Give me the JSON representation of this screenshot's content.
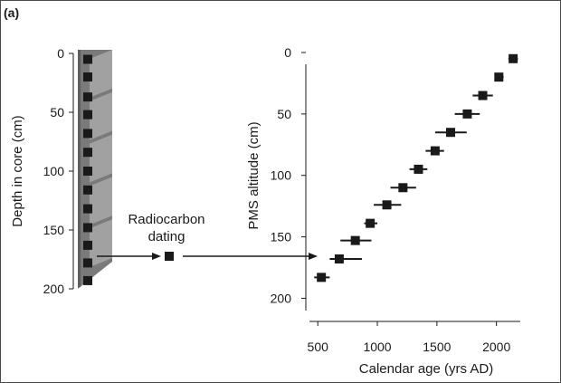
{
  "panel_label": "(a)",
  "annotation": {
    "line1": "Radiocarbon",
    "line2": "dating"
  },
  "colors": {
    "marker": "#1a1a1a",
    "axis": "#1a1a1a",
    "core_dark": "#7a7a7a",
    "core_light": "#a8a8a8",
    "core_shadow": "#5e5e5e"
  },
  "chart_data": [
    {
      "type": "core-diagram",
      "ylabel": "Depth in core (cm)",
      "ylim": [
        0,
        200
      ],
      "yticks": [
        0,
        50,
        100,
        150,
        200
      ],
      "sample_depths": [
        5,
        20,
        37,
        52,
        68,
        84,
        100,
        116,
        132,
        148,
        163,
        178,
        193
      ]
    },
    {
      "type": "scatter",
      "xlabel": "Calendar age (yrs AD)",
      "ylabel": "PMS altitude (cm)",
      "xlim": [
        430,
        2200
      ],
      "ylim": [
        0,
        210
      ],
      "xticks": [
        500,
        1000,
        1500,
        2000
      ],
      "yticks": [
        0,
        50,
        100,
        150,
        200
      ],
      "points": [
        {
          "x": 2140,
          "y": 5,
          "xerr": [
            2100,
            2180
          ]
        },
        {
          "x": 2020,
          "y": 20,
          "xerr": [
            1985,
            2060
          ]
        },
        {
          "x": 1885,
          "y": 35,
          "xerr": [
            1800,
            1970
          ]
        },
        {
          "x": 1755,
          "y": 50,
          "xerr": [
            1650,
            1860
          ]
        },
        {
          "x": 1615,
          "y": 65,
          "xerr": [
            1485,
            1750
          ]
        },
        {
          "x": 1485,
          "y": 80,
          "xerr": [
            1405,
            1560
          ]
        },
        {
          "x": 1345,
          "y": 95,
          "xerr": [
            1270,
            1420
          ]
        },
        {
          "x": 1215,
          "y": 110,
          "xerr": [
            1110,
            1325
          ]
        },
        {
          "x": 1080,
          "y": 124,
          "xerr": [
            970,
            1200
          ]
        },
        {
          "x": 940,
          "y": 139,
          "xerr": [
            890,
            1000
          ]
        },
        {
          "x": 815,
          "y": 153,
          "xerr": [
            690,
            950
          ]
        },
        {
          "x": 680,
          "y": 168,
          "xerr": [
            600,
            870
          ]
        },
        {
          "x": 530,
          "y": 183,
          "xerr": [
            470,
            600
          ]
        }
      ]
    }
  ]
}
